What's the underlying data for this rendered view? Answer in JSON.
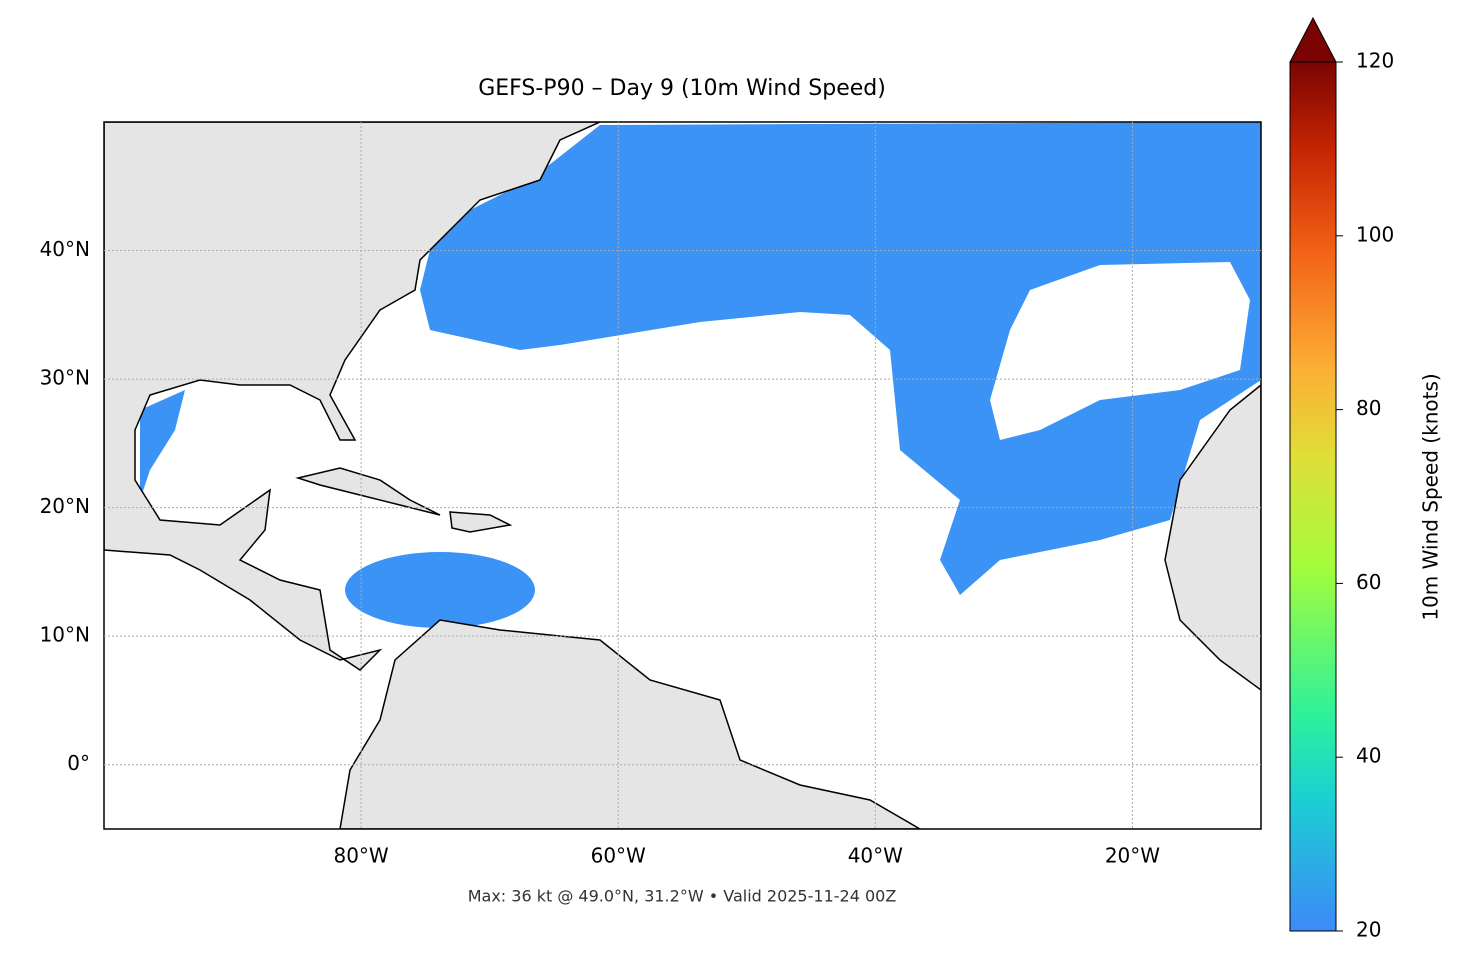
{
  "chart_data": {
    "type": "map",
    "title": "GEFS-P90 – Day 9 (10m Wind Speed)",
    "footer": "Max: 36 kt @ 49.0°N, 31.2°W • Valid 2025-11-24 00Z",
    "xlim": [
      -100,
      -10
    ],
    "ylim": [
      -5,
      50
    ],
    "xticks": [
      {
        "value": -80,
        "label": "80°W"
      },
      {
        "value": -60,
        "label": "60°W"
      },
      {
        "value": -40,
        "label": "40°W"
      },
      {
        "value": -20,
        "label": "20°W"
      }
    ],
    "yticks": [
      {
        "value": 0,
        "label": "0°"
      },
      {
        "value": 10,
        "label": "10°N"
      },
      {
        "value": 20,
        "label": "20°N"
      },
      {
        "value": 30,
        "label": "30°N"
      },
      {
        "value": 40,
        "label": "40°N"
      }
    ],
    "grid": true,
    "colorbar": {
      "label": "10m Wind Speed (knots)",
      "clim": [
        20,
        120
      ],
      "ticks": [
        20,
        40,
        60,
        80,
        100,
        120
      ]
    }
  }
}
